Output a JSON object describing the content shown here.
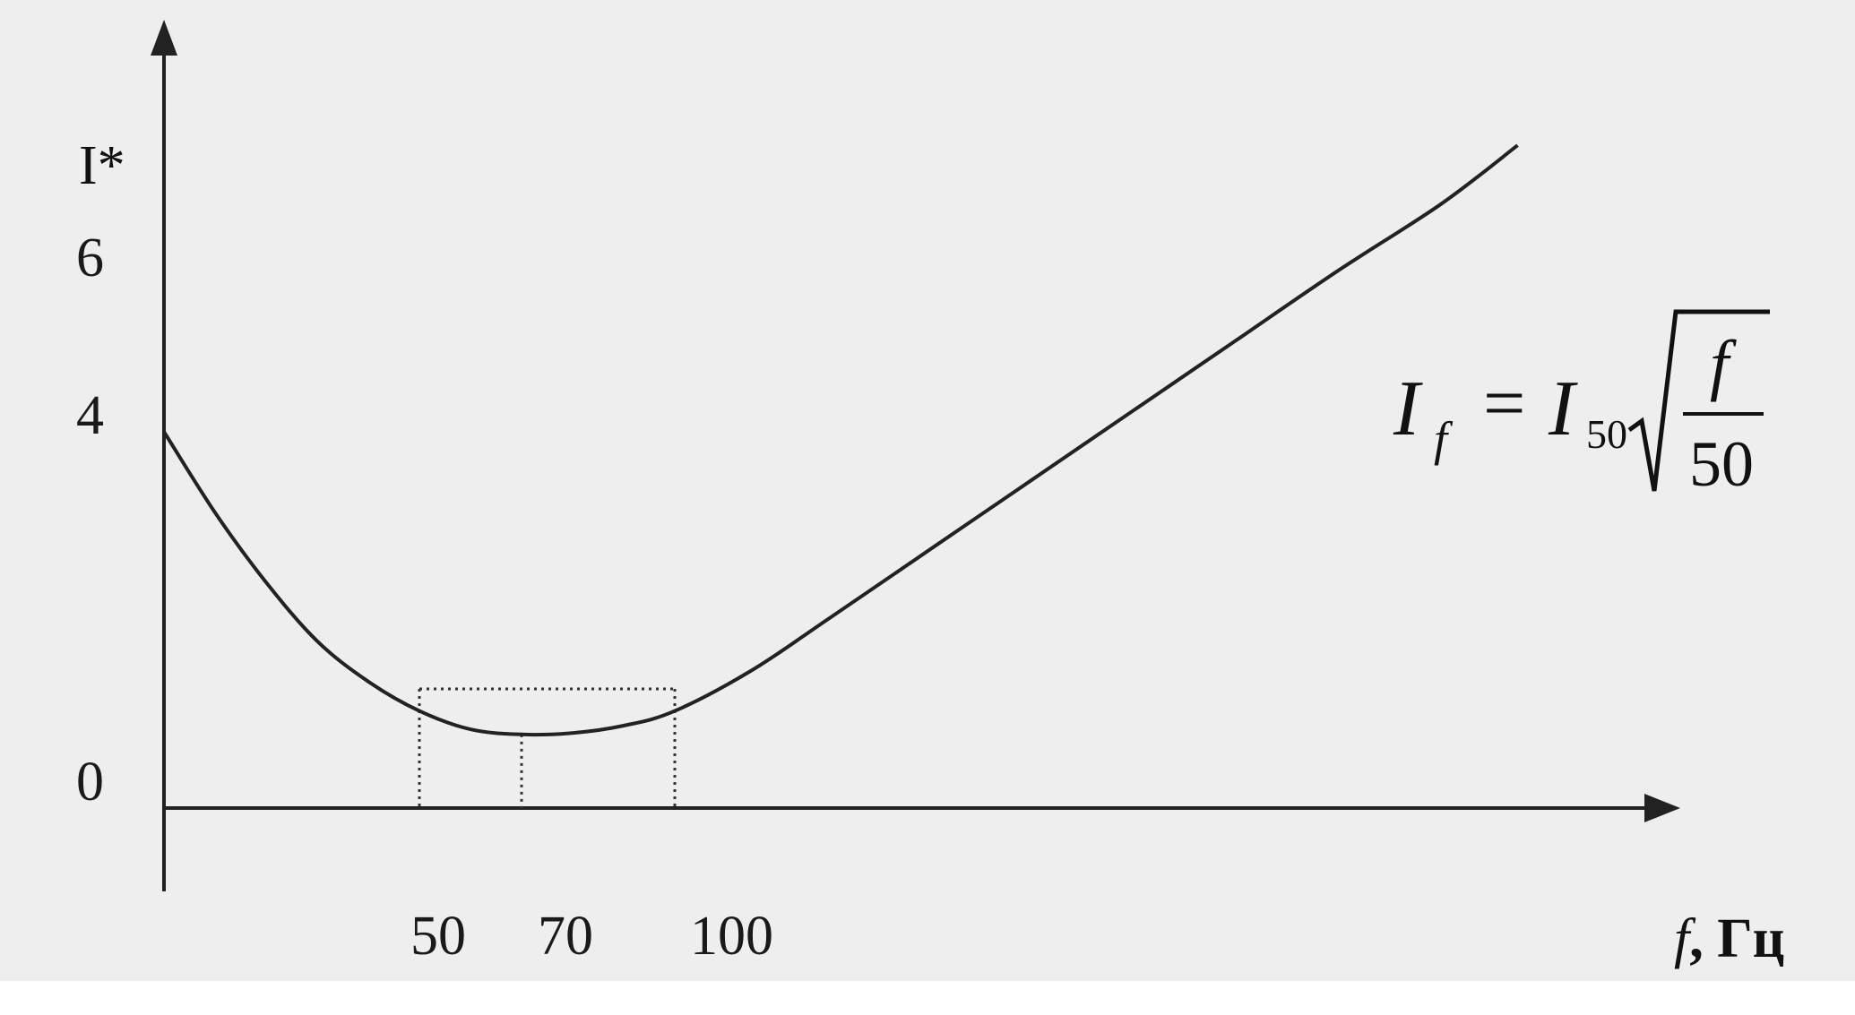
{
  "chart_data": {
    "type": "line",
    "ylabel": "I*",
    "xlabel_var": "f",
    "xlabel_unit": ", Гц",
    "y_ticks": [
      "0",
      "4",
      "6"
    ],
    "x_ticks": [
      "50",
      "70",
      "100"
    ],
    "series": [
      {
        "points": [
          {
            "x": 0,
            "y": 5.0
          },
          {
            "x": 10,
            "y": 3.9
          },
          {
            "x": 20,
            "y": 2.95
          },
          {
            "x": 30,
            "y": 2.15
          },
          {
            "x": 40,
            "y": 1.6
          },
          {
            "x": 50,
            "y": 1.2
          },
          {
            "x": 60,
            "y": 0.95
          },
          {
            "x": 70,
            "y": 0.88
          },
          {
            "x": 80,
            "y": 0.9
          },
          {
            "x": 90,
            "y": 1.0
          },
          {
            "x": 100,
            "y": 1.2
          },
          {
            "x": 115,
            "y": 1.75
          },
          {
            "x": 130,
            "y": 2.45
          },
          {
            "x": 150,
            "y": 3.4
          },
          {
            "x": 170,
            "y": 4.35
          },
          {
            "x": 190,
            "y": 5.3
          },
          {
            "x": 210,
            "y": 6.25
          },
          {
            "x": 230,
            "y": 7.2
          },
          {
            "x": 250,
            "y": 8.1
          },
          {
            "x": 265,
            "y": 8.9
          }
        ]
      }
    ],
    "guides": {
      "x_values": [
        50,
        70,
        100
      ],
      "y_level": 1.5
    },
    "formula": {
      "lhs_var": "I",
      "lhs_sub": "f",
      "equals": "=",
      "rhs_var": "I",
      "rhs_sub": "50",
      "frac_num": "f",
      "frac_den": "50"
    }
  }
}
